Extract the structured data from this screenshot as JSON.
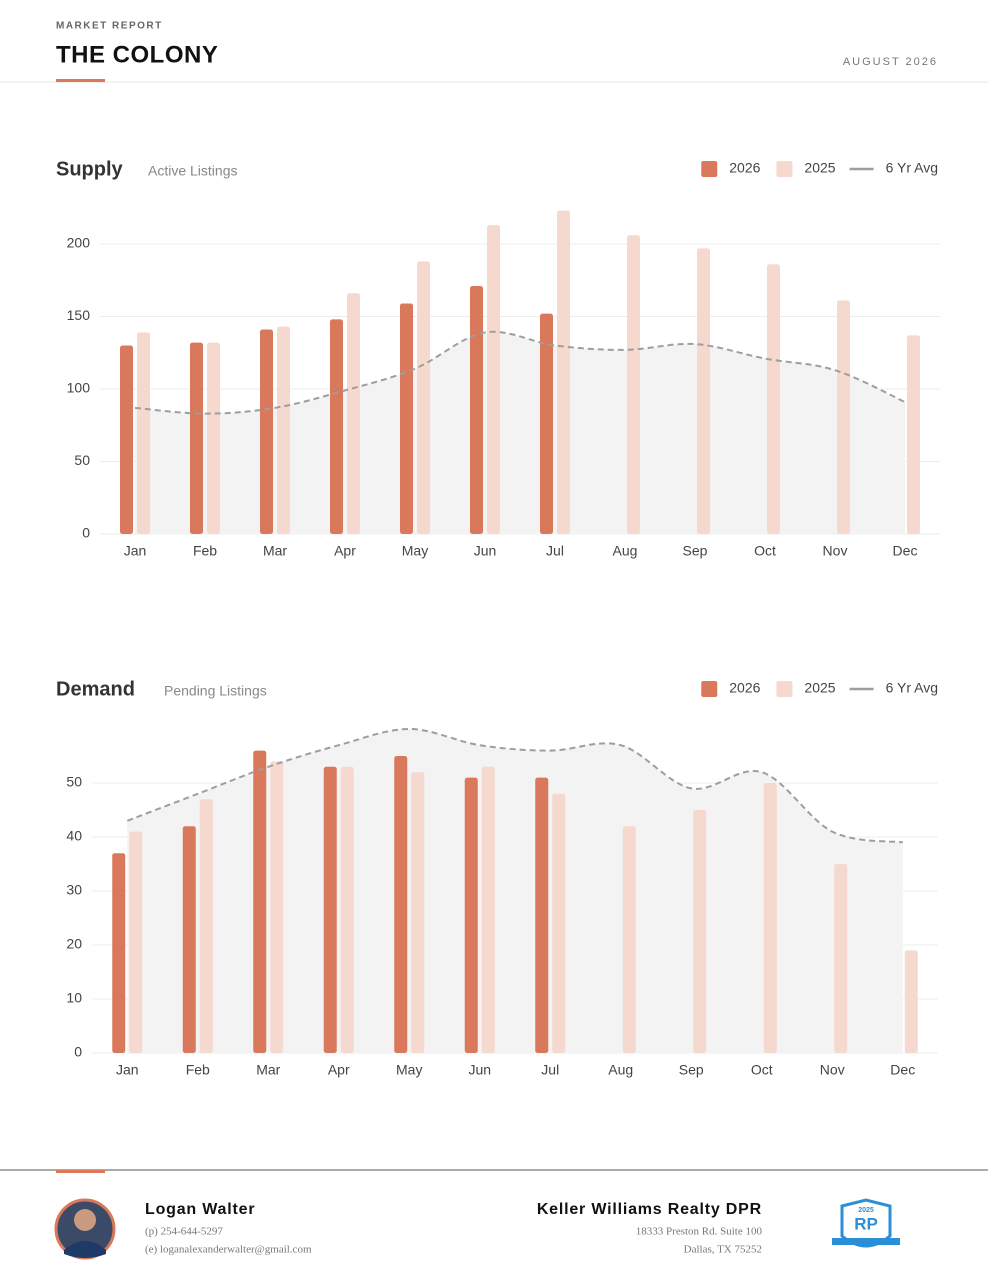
{
  "header": {
    "label": "MARKET REPORT",
    "title": "THE COLONY",
    "date": "AUGUST 2026"
  },
  "chart_data": [
    {
      "type": "bar",
      "title": "Supply",
      "subtitle": "Active Listings",
      "categories": [
        "Jan",
        "Feb",
        "Mar",
        "Apr",
        "May",
        "Jun",
        "Jul",
        "Aug",
        "Sep",
        "Oct",
        "Nov",
        "Dec"
      ],
      "series": [
        {
          "name": "2026",
          "color": "#d9785a",
          "values": [
            130,
            132,
            141,
            148,
            159,
            171,
            152,
            null,
            null,
            null,
            null,
            null
          ]
        },
        {
          "name": "2025",
          "color": "#f5d8ce",
          "values": [
            139,
            132,
            143,
            166,
            188,
            213,
            223,
            206,
            197,
            186,
            161,
            137
          ]
        },
        {
          "name": "6 Yr Avg",
          "type": "line",
          "color": "#9e9e9e",
          "values": [
            87,
            83,
            87,
            99,
            114,
            139,
            130,
            127,
            131,
            121,
            113,
            91
          ]
        }
      ],
      "ylim": [
        0,
        225
      ],
      "yticks": [
        0,
        50,
        100,
        150,
        200
      ],
      "grid": true
    },
    {
      "type": "bar",
      "title": "Demand",
      "subtitle": "Pending Listings",
      "categories": [
        "Jan",
        "Feb",
        "Mar",
        "Apr",
        "May",
        "Jun",
        "Jul",
        "Aug",
        "Sep",
        "Oct",
        "Nov",
        "Dec"
      ],
      "series": [
        {
          "name": "2026",
          "color": "#d9785a",
          "values": [
            37,
            42,
            56,
            53,
            55,
            51,
            51,
            null,
            null,
            null,
            null,
            null
          ]
        },
        {
          "name": "2025",
          "color": "#f5d8ce",
          "values": [
            41,
            47,
            54,
            53,
            52,
            53,
            48,
            42,
            45,
            50,
            35,
            19
          ]
        },
        {
          "name": "6 Yr Avg",
          "type": "line",
          "color": "#9e9e9e",
          "values": [
            43,
            48,
            53,
            57,
            60,
            57,
            56,
            57,
            49,
            52,
            41,
            39
          ]
        }
      ],
      "ylim": [
        0,
        60
      ],
      "yticks": [
        0,
        10,
        20,
        30,
        40,
        50
      ],
      "grid": true
    }
  ],
  "footer": {
    "agent": {
      "name": "Logan Walter",
      "phone": "(p) 254-644-5297",
      "email": "(e) loganalexanderwalter@gmail.com"
    },
    "brokerage": {
      "name": "Keller Williams Realty DPR",
      "address": [
        "18333 Preston Rd. Suite 100",
        "Dallas, TX 75252"
      ]
    },
    "badge": {
      "year": "2025",
      "logo": "RP"
    }
  }
}
